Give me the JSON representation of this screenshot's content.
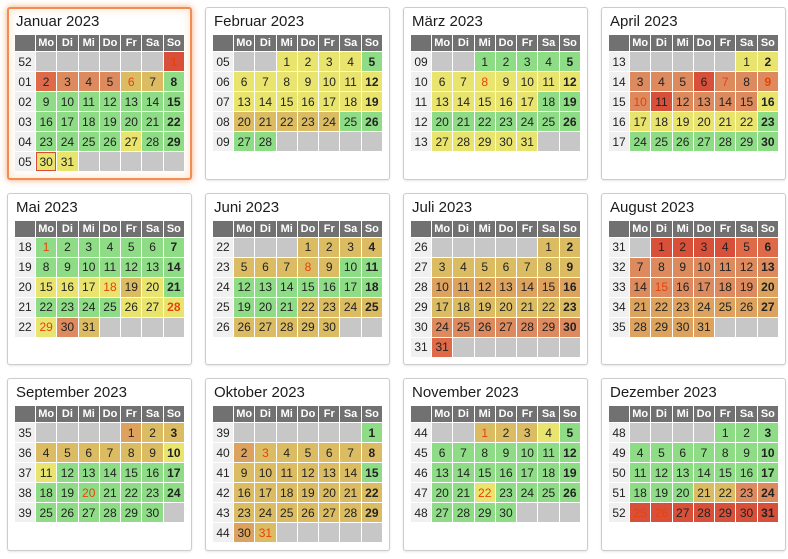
{
  "calendar": {
    "weekday_headers": [
      "Mo",
      "Di",
      "Mi",
      "Do",
      "Fr",
      "Sa",
      "So"
    ],
    "palette": {
      "g": "#8edc86",
      "y": "#e9e46e",
      "t": "#dcbc63",
      "ot": "#dda35e",
      "o": "#dc8a5e",
      "or": "#de6a4a",
      "r": "#d8503a"
    },
    "colors": {
      "holiday_text": "#e8420b",
      "day_text": "#222222",
      "week_number_text": "#9b9b9b",
      "header_bg": "#717171",
      "empty_cell": "#c7c7c7",
      "today_border": "#dc4a32",
      "current_month_border": "#ef8d55"
    },
    "months": [
      {
        "title": "Januar 2023",
        "first_weekday": 6,
        "highlighted": true,
        "today": 30,
        "weeks": [
          "52",
          "01",
          "02",
          "03",
          "04",
          "05"
        ],
        "holidays": [
          1,
          6
        ],
        "day_colors": [
          "r",
          "or",
          "o",
          "o",
          "o",
          "t",
          "t",
          "g",
          "g",
          "g",
          "g",
          "g",
          "g",
          "g",
          "g",
          "g",
          "g",
          "g",
          "g",
          "g",
          "g",
          "g",
          "g",
          "g",
          "g",
          "g",
          "y",
          "g",
          "g",
          "y",
          "y"
        ]
      },
      {
        "title": "Februar 2023",
        "first_weekday": 2,
        "highlighted": false,
        "today": 0,
        "weeks": [
          "05",
          "06",
          "07",
          "08",
          "09"
        ],
        "holidays": [],
        "day_colors": [
          "y",
          "y",
          "y",
          "y",
          "g",
          "y",
          "y",
          "y",
          "y",
          "y",
          "y",
          "y",
          "y",
          "y",
          "y",
          "y",
          "y",
          "y",
          "y",
          "t",
          "t",
          "t",
          "t",
          "t",
          "g",
          "g",
          "g",
          "g"
        ]
      },
      {
        "title": "März 2023",
        "first_weekday": 2,
        "highlighted": false,
        "today": 0,
        "weeks": [
          "09",
          "10",
          "11",
          "12",
          "13"
        ],
        "holidays": [
          8
        ],
        "day_colors": [
          "g",
          "g",
          "g",
          "g",
          "g",
          "y",
          "y",
          "y",
          "y",
          "y",
          "y",
          "y",
          "y",
          "y",
          "y",
          "y",
          "y",
          "g",
          "g",
          "g",
          "g",
          "g",
          "g",
          "g",
          "g",
          "g",
          "y",
          "y",
          "y",
          "y",
          "y"
        ]
      },
      {
        "title": "April 2023",
        "first_weekday": 5,
        "highlighted": false,
        "today": 0,
        "weeks": [
          "13",
          "14",
          "15",
          "16",
          "17"
        ],
        "holidays": [
          7,
          9,
          10
        ],
        "day_colors": [
          "y",
          "y",
          "o",
          "o",
          "o",
          "r",
          "o",
          "o",
          "o",
          "o",
          "r",
          "o",
          "o",
          "o",
          "o",
          "y",
          "y",
          "y",
          "y",
          "y",
          "y",
          "y",
          "g",
          "g",
          "g",
          "g",
          "g",
          "g",
          "g",
          "g"
        ]
      },
      {
        "title": "Mai 2023",
        "first_weekday": 0,
        "highlighted": false,
        "today": 0,
        "weeks": [
          "18",
          "19",
          "20",
          "21",
          "22"
        ],
        "holidays": [
          1,
          18,
          28,
          29
        ],
        "day_colors": [
          "g",
          "g",
          "g",
          "g",
          "g",
          "g",
          "g",
          "g",
          "g",
          "g",
          "g",
          "g",
          "g",
          "g",
          "y",
          "y",
          "y",
          "y",
          "t",
          "y",
          "g",
          "g",
          "g",
          "g",
          "g",
          "y",
          "y",
          "y",
          "y",
          "o",
          "t"
        ]
      },
      {
        "title": "Juni 2023",
        "first_weekday": 3,
        "highlighted": false,
        "today": 0,
        "weeks": [
          "22",
          "23",
          "24",
          "25",
          "26"
        ],
        "holidays": [
          8
        ],
        "day_colors": [
          "t",
          "t",
          "t",
          "t",
          "t",
          "t",
          "t",
          "t",
          "t",
          "g",
          "g",
          "g",
          "g",
          "g",
          "g",
          "g",
          "g",
          "g",
          "g",
          "g",
          "g",
          "t",
          "t",
          "t",
          "t",
          "t",
          "t",
          "t",
          "t",
          "t"
        ]
      },
      {
        "title": "Juli 2023",
        "first_weekday": 5,
        "highlighted": false,
        "today": 0,
        "weeks": [
          "26",
          "27",
          "28",
          "29",
          "30",
          "31"
        ],
        "holidays": [],
        "day_colors": [
          "t",
          "t",
          "t",
          "t",
          "t",
          "t",
          "t",
          "t",
          "t",
          "ot",
          "ot",
          "ot",
          "ot",
          "ot",
          "ot",
          "ot",
          "t",
          "t",
          "t",
          "t",
          "t",
          "t",
          "t",
          "o",
          "o",
          "o",
          "o",
          "o",
          "o",
          "o",
          "or"
        ]
      },
      {
        "title": "August 2023",
        "first_weekday": 1,
        "highlighted": false,
        "today": 0,
        "weeks": [
          "31",
          "32",
          "33",
          "34",
          "35"
        ],
        "holidays": [
          15
        ],
        "day_colors": [
          "r",
          "r",
          "r",
          "r",
          "or",
          "or",
          "o",
          "o",
          "o",
          "o",
          "o",
          "o",
          "o",
          "o",
          "o",
          "o",
          "o",
          "o",
          "o",
          "ot",
          "ot",
          "ot",
          "ot",
          "ot",
          "ot",
          "ot",
          "ot",
          "ot",
          "ot",
          "ot",
          "ot"
        ]
      },
      {
        "title": "September 2023",
        "first_weekday": 4,
        "highlighted": false,
        "today": 0,
        "weeks": [
          "35",
          "36",
          "37",
          "38",
          "39"
        ],
        "holidays": [
          20
        ],
        "day_colors": [
          "ot",
          "t",
          "t",
          "t",
          "t",
          "t",
          "t",
          "t",
          "t",
          "y",
          "y",
          "g",
          "g",
          "g",
          "g",
          "g",
          "g",
          "g",
          "g",
          "g",
          "g",
          "g",
          "g",
          "g",
          "g",
          "g",
          "g",
          "g",
          "g",
          "g"
        ]
      },
      {
        "title": "Oktober 2023",
        "first_weekday": 6,
        "highlighted": false,
        "today": 0,
        "weeks": [
          "39",
          "40",
          "41",
          "42",
          "43",
          "44"
        ],
        "holidays": [
          3,
          31
        ],
        "day_colors": [
          "g",
          "ot",
          "t",
          "t",
          "t",
          "t",
          "t",
          "t",
          "t",
          "t",
          "t",
          "t",
          "t",
          "t",
          "g",
          "t",
          "t",
          "t",
          "t",
          "t",
          "t",
          "t",
          "t",
          "t",
          "t",
          "t",
          "t",
          "t",
          "t",
          "ot",
          "t"
        ]
      },
      {
        "title": "November 2023",
        "first_weekday": 2,
        "highlighted": false,
        "today": 0,
        "weeks": [
          "44",
          "45",
          "46",
          "47",
          "48"
        ],
        "holidays": [
          1,
          22
        ],
        "day_colors": [
          "t",
          "t",
          "t",
          "y",
          "g",
          "g",
          "g",
          "g",
          "g",
          "g",
          "g",
          "g",
          "g",
          "g",
          "g",
          "g",
          "g",
          "g",
          "g",
          "g",
          "g",
          "y",
          "g",
          "g",
          "g",
          "g",
          "g",
          "g",
          "g",
          "g"
        ]
      },
      {
        "title": "Dezember 2023",
        "first_weekday": 4,
        "highlighted": false,
        "today": 0,
        "weeks": [
          "48",
          "49",
          "50",
          "51",
          "52"
        ],
        "holidays": [
          25,
          26
        ],
        "day_colors": [
          "g",
          "g",
          "g",
          "g",
          "g",
          "g",
          "g",
          "g",
          "g",
          "g",
          "g",
          "g",
          "g",
          "g",
          "g",
          "g",
          "g",
          "g",
          "g",
          "g",
          "t",
          "t",
          "o",
          "o",
          "r",
          "r",
          "r",
          "r",
          "r",
          "r",
          "r"
        ]
      }
    ]
  }
}
